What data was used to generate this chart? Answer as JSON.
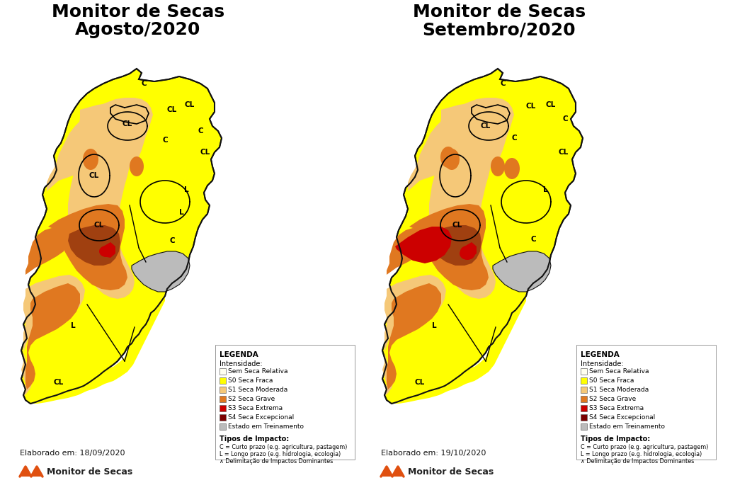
{
  "title_left_line1": "Monitor de Secas",
  "title_left_line2": "Agosto/2020",
  "title_right_line1": "Monitor de Secas",
  "title_right_line2": "Setembro/2020",
  "bg_color": "#FFFFFF",
  "elaborado_left": "Elaborado em: 18/09/2020",
  "elaborado_right": "Elaborado em: 19/10/2020",
  "brand_text": "Monitor de Secas",
  "legend_title": "LEGENDA",
  "legend_intensidade": "Intensidade:",
  "legend_items": [
    {
      "label": "Sem Seca Relativa",
      "color": "#FFFFF0"
    },
    {
      "label": "S0 Seca Fraca",
      "color": "#FFFF00"
    },
    {
      "label": "S1 Seca Moderada",
      "color": "#F5C878"
    },
    {
      "label": "S2 Seca Grave",
      "color": "#E07820"
    },
    {
      "label": "S3 Seca Extrema",
      "color": "#CC0000"
    },
    {
      "label": "S4 Seca Excepcional",
      "color": "#7B0000"
    },
    {
      "label": "Estado em Treinamento",
      "color": "#BBBBBB"
    }
  ],
  "tipos_impacto_title": "Tipos de Impacto:",
  "tipos_impacto_lines": [
    "C = Curto prazo (e.g. agricultura, pastagem)",
    "L = Longo prazo (e.g. hidrologia, ecologia)",
    "∧ Delimitação de Impactos Dominantes"
  ],
  "colors": {
    "white": "#FFFFFF",
    "yellow": "#FFFF00",
    "light_orange": "#F5C878",
    "orange": "#E07820",
    "dark_orange": "#A04010",
    "red": "#CC0000",
    "dark_red": "#7B0000",
    "gray": "#BBBBBB",
    "outline": "#111111",
    "white_fill": "#FFFFF0"
  },
  "map_scale": 1.0
}
